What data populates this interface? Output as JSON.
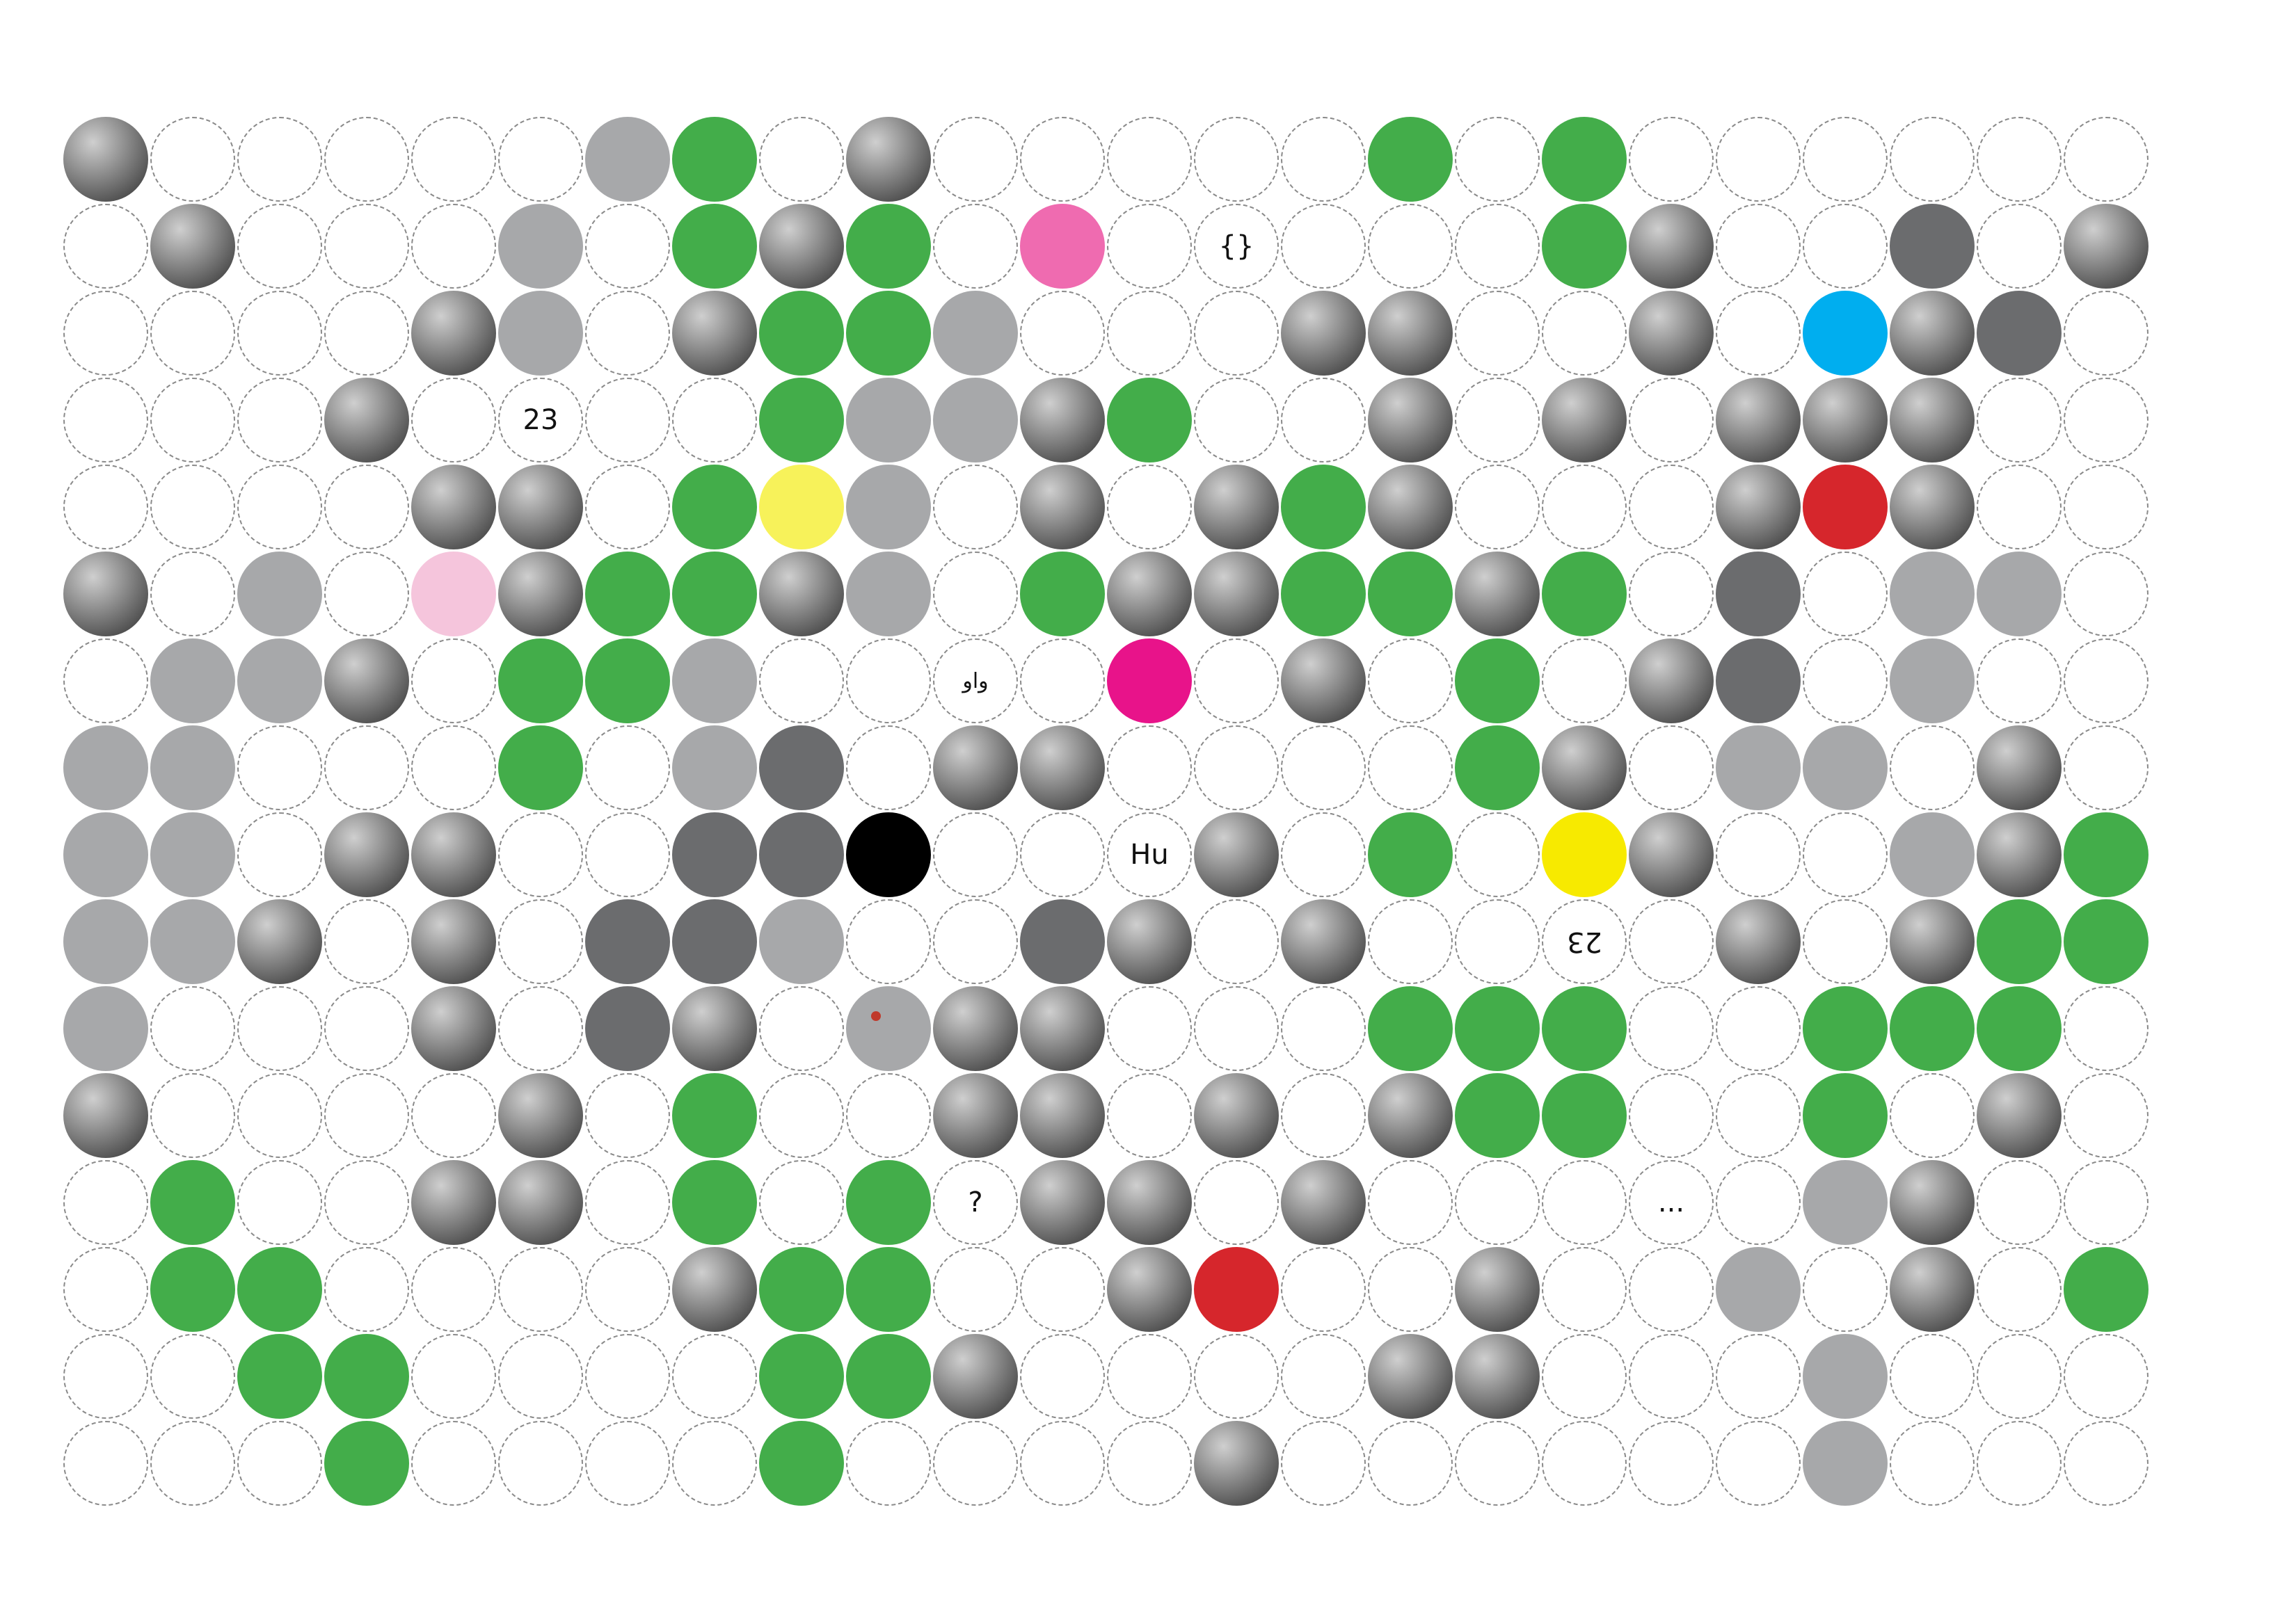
{
  "colors": {
    "green": "#43ad4a",
    "gray": "#a7a8aa",
    "dark_gray": "#6b6c6e",
    "pink": "#ef6bb0",
    "magenta": "#e8138a",
    "light_pink": "#f5c5dc",
    "yellow": "#f7f25a",
    "bright_yellow": "#f7ea00",
    "red": "#d6262c",
    "blue": "#00aeef",
    "black": "#000000"
  },
  "grid": {
    "rows": 16,
    "cols": 24
  },
  "cells": [
    {
      "r": 0,
      "c": 0,
      "kind": "photo",
      "icon": "x-mark-photo"
    },
    {
      "r": 0,
      "c": 6,
      "kind": "fill",
      "color": "gray"
    },
    {
      "r": 0,
      "c": 7,
      "kind": "fill",
      "color": "green"
    },
    {
      "r": 0,
      "c": 9,
      "kind": "photo",
      "icon": "city-photo"
    },
    {
      "r": 0,
      "c": 15,
      "kind": "fill",
      "color": "green"
    },
    {
      "r": 0,
      "c": 17,
      "kind": "fill",
      "color": "green"
    },
    {
      "r": 1,
      "c": 1,
      "kind": "photo",
      "icon": "bowling-balls-photo"
    },
    {
      "r": 1,
      "c": 5,
      "kind": "fill",
      "color": "gray"
    },
    {
      "r": 1,
      "c": 7,
      "kind": "fill",
      "color": "green"
    },
    {
      "r": 1,
      "c": 8,
      "kind": "photo",
      "icon": "minesweeper-photo"
    },
    {
      "r": 1,
      "c": 9,
      "kind": "fill",
      "color": "green"
    },
    {
      "r": 1,
      "c": 11,
      "kind": "fill",
      "color": "pink"
    },
    {
      "r": 1,
      "c": 13,
      "kind": "text",
      "text": "{}"
    },
    {
      "r": 1,
      "c": 17,
      "kind": "fill",
      "color": "green"
    },
    {
      "r": 1,
      "c": 18,
      "kind": "photo",
      "icon": "camera-photo"
    },
    {
      "r": 1,
      "c": 21,
      "kind": "fill",
      "color": "dark_gray"
    },
    {
      "r": 1,
      "c": 23,
      "kind": "photo",
      "icon": "person-green-photo"
    },
    {
      "r": 2,
      "c": 4,
      "kind": "photo",
      "icon": "gas-mask-photo"
    },
    {
      "r": 2,
      "c": 5,
      "kind": "fill",
      "color": "gray"
    },
    {
      "r": 2,
      "c": 7,
      "kind": "photo",
      "icon": "grid-photo"
    },
    {
      "r": 2,
      "c": 8,
      "kind": "fill",
      "color": "green"
    },
    {
      "r": 2,
      "c": 9,
      "kind": "fill",
      "color": "green"
    },
    {
      "r": 2,
      "c": 10,
      "kind": "fill",
      "color": "gray"
    },
    {
      "r": 2,
      "c": 14,
      "kind": "photo",
      "icon": "scorpion-photo"
    },
    {
      "r": 2,
      "c": 15,
      "kind": "photo",
      "icon": "printer-photo"
    },
    {
      "r": 2,
      "c": 18,
      "kind": "photo",
      "icon": "label-photo"
    },
    {
      "r": 2,
      "c": 20,
      "kind": "fill",
      "color": "blue"
    },
    {
      "r": 2,
      "c": 21,
      "kind": "photo",
      "icon": "apple-photo"
    },
    {
      "r": 2,
      "c": 22,
      "kind": "fill",
      "color": "dark_gray"
    },
    {
      "r": 3,
      "c": 3,
      "kind": "photo",
      "icon": "fruit-photo"
    },
    {
      "r": 3,
      "c": 5,
      "kind": "text",
      "text": "23"
    },
    {
      "r": 3,
      "c": 8,
      "kind": "fill",
      "color": "green"
    },
    {
      "r": 3,
      "c": 9,
      "kind": "fill",
      "color": "gray"
    },
    {
      "r": 3,
      "c": 10,
      "kind": "fill",
      "color": "gray"
    },
    {
      "r": 3,
      "c": 11,
      "kind": "photo",
      "icon": "keys-photo"
    },
    {
      "r": 3,
      "c": 12,
      "kind": "fill",
      "color": "green"
    },
    {
      "r": 3,
      "c": 15,
      "kind": "photo",
      "icon": "machine-photo"
    },
    {
      "r": 3,
      "c": 17,
      "kind": "photo",
      "icon": "pins-photo"
    },
    {
      "r": 3,
      "c": 19,
      "kind": "photo",
      "icon": "dots-photo"
    },
    {
      "r": 3,
      "c": 20,
      "kind": "photo",
      "icon": "book-photo"
    },
    {
      "r": 3,
      "c": 21,
      "kind": "photo",
      "icon": "eye-photo"
    },
    {
      "r": 4,
      "c": 4,
      "kind": "photo",
      "icon": "glasses-photo"
    },
    {
      "r": 4,
      "c": 5,
      "kind": "photo",
      "icon": "fish-photo"
    },
    {
      "r": 4,
      "c": 7,
      "kind": "fill",
      "color": "green"
    },
    {
      "r": 4,
      "c": 8,
      "kind": "fill",
      "color": "yellow"
    },
    {
      "r": 4,
      "c": 9,
      "kind": "fill",
      "color": "gray"
    },
    {
      "r": 4,
      "c": 11,
      "kind": "photo",
      "icon": "stairs-photo"
    },
    {
      "r": 4,
      "c": 13,
      "kind": "photo",
      "icon": "pencils-photo"
    },
    {
      "r": 4,
      "c": 14,
      "kind": "fill",
      "color": "green"
    },
    {
      "r": 4,
      "c": 15,
      "kind": "photo",
      "icon": "leaf-photo"
    },
    {
      "r": 4,
      "c": 19,
      "kind": "photo",
      "icon": "mural-photo"
    },
    {
      "r": 4,
      "c": 20,
      "kind": "fill",
      "color": "red"
    },
    {
      "r": 4,
      "c": 21,
      "kind": "photo",
      "icon": "minesweeper-small-photo"
    },
    {
      "r": 5,
      "c": 0,
      "kind": "photo",
      "icon": "gradient-photo"
    },
    {
      "r": 5,
      "c": 2,
      "kind": "fill",
      "color": "gray"
    },
    {
      "r": 5,
      "c": 4,
      "kind": "fill",
      "color": "light_pink"
    },
    {
      "r": 5,
      "c": 5,
      "kind": "photo",
      "icon": "target-icon"
    },
    {
      "r": 5,
      "c": 6,
      "kind": "fill",
      "color": "green"
    },
    {
      "r": 5,
      "c": 7,
      "kind": "fill",
      "color": "green"
    },
    {
      "r": 5,
      "c": 8,
      "kind": "photo",
      "icon": "blur-photo"
    },
    {
      "r": 5,
      "c": 9,
      "kind": "fill",
      "color": "gray"
    },
    {
      "r": 5,
      "c": 11,
      "kind": "fill",
      "color": "green"
    },
    {
      "r": 5,
      "c": 12,
      "kind": "photo",
      "icon": "sky-photo"
    },
    {
      "r": 5,
      "c": 13,
      "kind": "photo",
      "icon": "led-photo"
    },
    {
      "r": 5,
      "c": 14,
      "kind": "fill",
      "color": "green"
    },
    {
      "r": 5,
      "c": 15,
      "kind": "fill",
      "color": "green"
    },
    {
      "r": 5,
      "c": 16,
      "kind": "photo",
      "icon": "keyboard-photo"
    },
    {
      "r": 5,
      "c": 17,
      "kind": "fill",
      "color": "green"
    },
    {
      "r": 5,
      "c": 19,
      "kind": "fill",
      "color": "dark_gray"
    },
    {
      "r": 5,
      "c": 21,
      "kind": "fill",
      "color": "gray"
    },
    {
      "r": 5,
      "c": 22,
      "kind": "fill",
      "color": "gray"
    },
    {
      "r": 6,
      "c": 1,
      "kind": "fill",
      "color": "gray"
    },
    {
      "r": 6,
      "c": 2,
      "kind": "fill",
      "color": "gray"
    },
    {
      "r": 6,
      "c": 3,
      "kind": "photo",
      "icon": "dot-pattern-photo"
    },
    {
      "r": 6,
      "c": 5,
      "kind": "fill",
      "color": "green"
    },
    {
      "r": 6,
      "c": 6,
      "kind": "fill",
      "color": "green"
    },
    {
      "r": 6,
      "c": 7,
      "kind": "fill",
      "color": "gray"
    },
    {
      "r": 6,
      "c": 10,
      "kind": "text",
      "text": "واو",
      "small": true
    },
    {
      "r": 6,
      "c": 12,
      "kind": "fill",
      "color": "magenta"
    },
    {
      "r": 6,
      "c": 14,
      "kind": "photo",
      "icon": "screen-photo"
    },
    {
      "r": 6,
      "c": 16,
      "kind": "fill",
      "color": "green"
    },
    {
      "r": 6,
      "c": 18,
      "kind": "photo",
      "icon": "metal-photo"
    },
    {
      "r": 6,
      "c": 19,
      "kind": "fill",
      "color": "dark_gray"
    },
    {
      "r": 6,
      "c": 21,
      "kind": "fill",
      "color": "gray"
    },
    {
      "r": 7,
      "c": 0,
      "kind": "fill",
      "color": "gray"
    },
    {
      "r": 7,
      "c": 1,
      "kind": "fill",
      "color": "gray"
    },
    {
      "r": 7,
      "c": 5,
      "kind": "fill",
      "color": "green"
    },
    {
      "r": 7,
      "c": 7,
      "kind": "fill",
      "color": "gray"
    },
    {
      "r": 7,
      "c": 8,
      "kind": "fill",
      "color": "dark_gray"
    },
    {
      "r": 7,
      "c": 10,
      "kind": "photo",
      "icon": "hands-photo"
    },
    {
      "r": 7,
      "c": 11,
      "kind": "photo",
      "icon": "holes-photo"
    },
    {
      "r": 7,
      "c": 16,
      "kind": "fill",
      "color": "green"
    },
    {
      "r": 7,
      "c": 17,
      "kind": "photo",
      "icon": "crowd-photo"
    },
    {
      "r": 7,
      "c": 19,
      "kind": "fill",
      "color": "gray"
    },
    {
      "r": 7,
      "c": 20,
      "kind": "fill",
      "color": "gray"
    },
    {
      "r": 7,
      "c": 22,
      "kind": "photo",
      "icon": "test-print-photo"
    },
    {
      "r": 8,
      "c": 0,
      "kind": "fill",
      "color": "gray"
    },
    {
      "r": 8,
      "c": 1,
      "kind": "fill",
      "color": "gray"
    },
    {
      "r": 8,
      "c": 3,
      "kind": "photo",
      "icon": "ribbon-photo"
    },
    {
      "r": 8,
      "c": 4,
      "kind": "photo",
      "icon": "earth-photo"
    },
    {
      "r": 8,
      "c": 7,
      "kind": "fill",
      "color": "dark_gray"
    },
    {
      "r": 8,
      "c": 8,
      "kind": "fill",
      "color": "dark_gray"
    },
    {
      "r": 8,
      "c": 9,
      "kind": "fill",
      "color": "black"
    },
    {
      "r": 8,
      "c": 12,
      "kind": "text",
      "text": "Hu"
    },
    {
      "r": 8,
      "c": 13,
      "kind": "photo",
      "icon": "trees-photo"
    },
    {
      "r": 8,
      "c": 15,
      "kind": "fill",
      "color": "green"
    },
    {
      "r": 8,
      "c": 17,
      "kind": "fill",
      "color": "bright_yellow"
    },
    {
      "r": 8,
      "c": 18,
      "kind": "photo",
      "icon": "snow-photo"
    },
    {
      "r": 8,
      "c": 21,
      "kind": "fill",
      "color": "gray"
    },
    {
      "r": 8,
      "c": 22,
      "kind": "photo",
      "icon": "frame-photo"
    },
    {
      "r": 8,
      "c": 23,
      "kind": "fill",
      "color": "green"
    },
    {
      "r": 9,
      "c": 0,
      "kind": "fill",
      "color": "gray"
    },
    {
      "r": 9,
      "c": 1,
      "kind": "fill",
      "color": "gray"
    },
    {
      "r": 9,
      "c": 2,
      "kind": "photo",
      "icon": "molecule-photo"
    },
    {
      "r": 9,
      "c": 4,
      "kind": "photo",
      "icon": "confetti-photo"
    },
    {
      "r": 9,
      "c": 6,
      "kind": "fill",
      "color": "dark_gray"
    },
    {
      "r": 9,
      "c": 7,
      "kind": "fill",
      "color": "dark_gray"
    },
    {
      "r": 9,
      "c": 8,
      "kind": "fill",
      "color": "gray"
    },
    {
      "r": 9,
      "c": 11,
      "kind": "fill",
      "color": "dark_gray"
    },
    {
      "r": 9,
      "c": 12,
      "kind": "photo",
      "icon": "floor-photo"
    },
    {
      "r": 9,
      "c": 14,
      "kind": "photo",
      "icon": "perforated-photo"
    },
    {
      "r": 9,
      "c": 17,
      "kind": "text",
      "text": "23",
      "flip": true
    },
    {
      "r": 9,
      "c": 19,
      "kind": "photo",
      "icon": "figures-photo"
    },
    {
      "r": 9,
      "c": 21,
      "kind": "photo",
      "icon": "minesweeper-corner-photo"
    },
    {
      "r": 9,
      "c": 22,
      "kind": "fill",
      "color": "green"
    },
    {
      "r": 9,
      "c": 23,
      "kind": "fill",
      "color": "green"
    },
    {
      "r": 10,
      "c": 0,
      "kind": "fill",
      "color": "gray"
    },
    {
      "r": 10,
      "c": 4,
      "kind": "photo",
      "icon": "hand-photo"
    },
    {
      "r": 10,
      "c": 6,
      "kind": "fill",
      "color": "dark_gray"
    },
    {
      "r": 10,
      "c": 7,
      "kind": "photo",
      "icon": "bags-photo"
    },
    {
      "r": 10,
      "c": 9,
      "kind": "fill",
      "color": "gray",
      "dot": true
    },
    {
      "r": 10,
      "c": 10,
      "kind": "photo",
      "icon": "child-photo"
    },
    {
      "r": 10,
      "c": 11,
      "kind": "photo",
      "icon": "lines-photo"
    },
    {
      "r": 10,
      "c": 15,
      "kind": "fill",
      "color": "green"
    },
    {
      "r": 10,
      "c": 16,
      "kind": "fill",
      "color": "green"
    },
    {
      "r": 10,
      "c": 17,
      "kind": "fill",
      "color": "green"
    },
    {
      "r": 10,
      "c": 20,
      "kind": "fill",
      "color": "green"
    },
    {
      "r": 10,
      "c": 21,
      "kind": "fill",
      "color": "green"
    },
    {
      "r": 10,
      "c": 22,
      "kind": "fill",
      "color": "green"
    },
    {
      "r": 11,
      "c": 0,
      "kind": "photo",
      "icon": "car-photo"
    },
    {
      "r": 11,
      "c": 5,
      "kind": "photo",
      "icon": "explosion-photo"
    },
    {
      "r": 11,
      "c": 7,
      "kind": "fill",
      "color": "green"
    },
    {
      "r": 11,
      "c": 10,
      "kind": "photo",
      "icon": "window-photo"
    },
    {
      "r": 11,
      "c": 11,
      "kind": "photo",
      "icon": "monitor-photo"
    },
    {
      "r": 11,
      "c": 13,
      "kind": "photo",
      "icon": "x-mark-gray-photo"
    },
    {
      "r": 11,
      "c": 15,
      "kind": "photo",
      "icon": "cat-photo"
    },
    {
      "r": 11,
      "c": 16,
      "kind": "fill",
      "color": "green"
    },
    {
      "r": 11,
      "c": 17,
      "kind": "fill",
      "color": "green"
    },
    {
      "r": 11,
      "c": 20,
      "kind": "fill",
      "color": "green"
    },
    {
      "r": 11,
      "c": 22,
      "kind": "photo",
      "icon": "fence-photo"
    },
    {
      "r": 12,
      "c": 1,
      "kind": "fill",
      "color": "green"
    },
    {
      "r": 12,
      "c": 4,
      "kind": "photo",
      "icon": "yellow-texture-photo"
    },
    {
      "r": 12,
      "c": 5,
      "kind": "photo",
      "icon": "minesweeper-numbers-photo"
    },
    {
      "r": 12,
      "c": 7,
      "kind": "fill",
      "color": "green"
    },
    {
      "r": 12,
      "c": 9,
      "kind": "fill",
      "color": "green"
    },
    {
      "r": 12,
      "c": 10,
      "kind": "text",
      "text": "?"
    },
    {
      "r": 12,
      "c": 11,
      "kind": "photo",
      "icon": "water-photo"
    },
    {
      "r": 12,
      "c": 12,
      "kind": "photo",
      "icon": "green-mesh-photo"
    },
    {
      "r": 12,
      "c": 14,
      "kind": "photo",
      "icon": "color-bars-photo"
    },
    {
      "r": 12,
      "c": 18,
      "kind": "text",
      "text": "..."
    },
    {
      "r": 12,
      "c": 20,
      "kind": "fill",
      "color": "gray"
    },
    {
      "r": 12,
      "c": 21,
      "kind": "photo",
      "icon": "portrait-photo"
    },
    {
      "r": 13,
      "c": 1,
      "kind": "fill",
      "color": "green"
    },
    {
      "r": 13,
      "c": 2,
      "kind": "fill",
      "color": "green"
    },
    {
      "r": 13,
      "c": 7,
      "kind": "photo",
      "icon": "tubes-photo"
    },
    {
      "r": 13,
      "c": 8,
      "kind": "fill",
      "color": "green"
    },
    {
      "r": 13,
      "c": 9,
      "kind": "fill",
      "color": "green"
    },
    {
      "r": 13,
      "c": 12,
      "kind": "photo",
      "icon": "rubble-photo"
    },
    {
      "r": 13,
      "c": 13,
      "kind": "fill",
      "color": "red"
    },
    {
      "r": 13,
      "c": 16,
      "kind": "photo",
      "icon": "sofa-photo"
    },
    {
      "r": 13,
      "c": 19,
      "kind": "fill",
      "color": "gray"
    },
    {
      "r": 13,
      "c": 21,
      "kind": "photo",
      "icon": "parking-photo"
    },
    {
      "r": 13,
      "c": 23,
      "kind": "fill",
      "color": "green"
    },
    {
      "r": 14,
      "c": 2,
      "kind": "fill",
      "color": "green"
    },
    {
      "r": 14,
      "c": 3,
      "kind": "fill",
      "color": "green"
    },
    {
      "r": 14,
      "c": 8,
      "kind": "fill",
      "color": "green"
    },
    {
      "r": 14,
      "c": 9,
      "kind": "fill",
      "color": "green"
    },
    {
      "r": 14,
      "c": 10,
      "kind": "photo",
      "icon": "circles-photo"
    },
    {
      "r": 14,
      "c": 15,
      "kind": "photo",
      "icon": "dark-photo"
    },
    {
      "r": 14,
      "c": 16,
      "kind": "photo",
      "icon": "nebula-photo"
    },
    {
      "r": 14,
      "c": 20,
      "kind": "fill",
      "color": "gray"
    },
    {
      "r": 15,
      "c": 3,
      "kind": "fill",
      "color": "green"
    },
    {
      "r": 15,
      "c": 8,
      "kind": "fill",
      "color": "green"
    },
    {
      "r": 15,
      "c": 13,
      "kind": "photo",
      "icon": "fabric-photo"
    },
    {
      "r": 15,
      "c": 20,
      "kind": "fill",
      "color": "gray"
    }
  ]
}
